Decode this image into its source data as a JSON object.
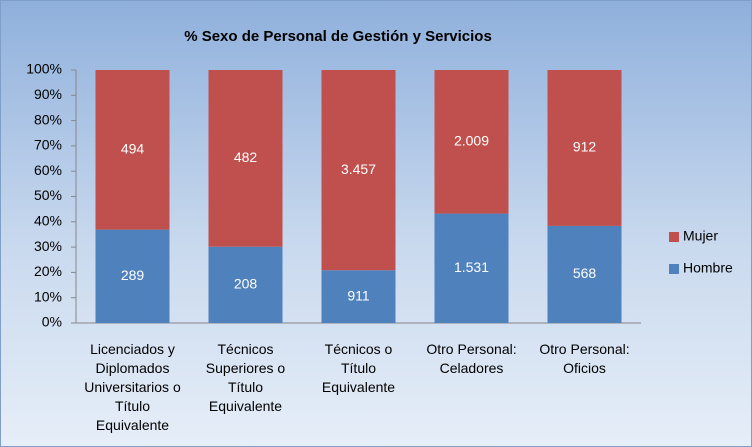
{
  "chart_data": {
    "type": "bar",
    "stacking": "percent",
    "title": "%  Sexo  de Personal de Gestión y Servicios",
    "categories": [
      "Licenciados y Diplomados Universitarios o Título Equivalente",
      "Técnicos Superiores o Título Equivalente",
      "Técnicos o Título Equivalente",
      "Otro Personal: Celadores",
      "Otro Personal: Oficios"
    ],
    "series": [
      {
        "name": "Hombre",
        "color": "#4f81bd",
        "values": [
          289,
          208,
          911,
          1531,
          568
        ],
        "value_labels": [
          "289",
          "208",
          "911",
          "1.531",
          "568"
        ]
      },
      {
        "name": "Mujer",
        "color": "#c0504d",
        "values": [
          494,
          482,
          3457,
          2009,
          912
        ],
        "value_labels": [
          "494",
          "482",
          "3.457",
          "2.009",
          "912"
        ]
      }
    ],
    "ylim": [
      0,
      100
    ],
    "yticks": [
      {
        "value": 0,
        "label": "0%"
      },
      {
        "value": 10,
        "label": "10%"
      },
      {
        "value": 20,
        "label": "20%"
      },
      {
        "value": 30,
        "label": "30%"
      },
      {
        "value": 40,
        "label": "40%"
      },
      {
        "value": 50,
        "label": "50%"
      },
      {
        "value": 60,
        "label": "60%"
      },
      {
        "value": 70,
        "label": "70%"
      },
      {
        "value": 80,
        "label": "80%"
      },
      {
        "value": 90,
        "label": "90%"
      },
      {
        "value": 100,
        "label": "100%"
      }
    ],
    "grid": false,
    "legend": "right"
  }
}
